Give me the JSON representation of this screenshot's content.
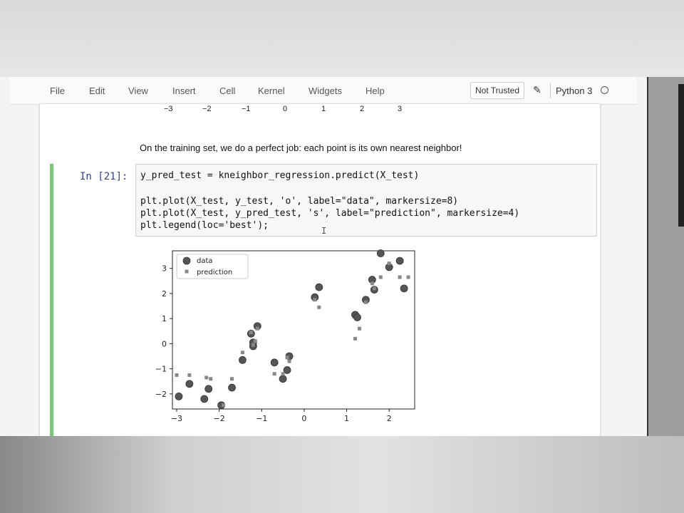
{
  "menu": {
    "items": [
      "File",
      "Edit",
      "View",
      "Insert",
      "Cell",
      "Kernel",
      "Widgets",
      "Help"
    ],
    "trust_label": "Not Trusted",
    "kernel_label": "Python 3",
    "pencil_icon": "pencil-icon",
    "kernel_status_icon": "kernel-idle-circle-icon"
  },
  "previous_output": {
    "tick_labels": [
      "−3",
      "−2",
      "−1",
      "0",
      "1",
      "2",
      "3"
    ]
  },
  "markdown_text": "On the training set, we do a perfect job: each point is its own nearest neighbor!",
  "cell": {
    "prompt": "In [21]:",
    "code_lines": [
      "y_pred_test = kneighbor_regression.predict(X_test)",
      "",
      "plt.plot(X_test, y_test, 'o', label=\"data\", markersize=8)",
      "plt.plot(X_test, y_pred_test, 's', label=\"prediction\", markersize=4)",
      "plt.legend(loc='best');"
    ],
    "cursor_glyph": "I"
  },
  "chart_data": {
    "type": "scatter",
    "xlim": [
      -3.1,
      2.6
    ],
    "ylim": [
      -2.6,
      3.7
    ],
    "xticks": [
      -3,
      -2,
      -1,
      0,
      1,
      2
    ],
    "xtick_labels": [
      "−3",
      "−2",
      "−1",
      "0",
      "1",
      "2"
    ],
    "yticks": [
      -2,
      -1,
      0,
      1,
      2,
      3
    ],
    "ytick_labels": [
      "−2",
      "−1",
      "0",
      "1",
      "2",
      "3"
    ],
    "legend": {
      "placement": "upper-left",
      "entries": [
        "data",
        "prediction"
      ]
    },
    "series": [
      {
        "name": "data",
        "marker": "circle",
        "color": "#555555",
        "points": [
          [
            -2.95,
            -2.1
          ],
          [
            -2.7,
            -1.6
          ],
          [
            -2.35,
            -2.2
          ],
          [
            -2.25,
            -1.8
          ],
          [
            -1.95,
            -2.45
          ],
          [
            -1.7,
            -1.75
          ],
          [
            -1.45,
            -0.65
          ],
          [
            -1.25,
            0.4
          ],
          [
            -1.2,
            -0.1
          ],
          [
            -1.2,
            0.05
          ],
          [
            -1.1,
            0.7
          ],
          [
            -0.7,
            -0.75
          ],
          [
            -0.5,
            -1.4
          ],
          [
            -0.4,
            -1.05
          ],
          [
            -0.35,
            -0.5
          ],
          [
            0.25,
            1.85
          ],
          [
            0.35,
            2.25
          ],
          [
            1.2,
            1.15
          ],
          [
            1.25,
            1.05
          ],
          [
            1.45,
            1.75
          ],
          [
            1.6,
            2.55
          ],
          [
            1.65,
            2.15
          ],
          [
            1.8,
            3.6
          ],
          [
            2.0,
            3.05
          ],
          [
            2.25,
            3.3
          ],
          [
            2.35,
            2.2
          ]
        ]
      },
      {
        "name": "prediction",
        "marker": "square",
        "color": "#888888",
        "points": [
          [
            -3.0,
            -1.25
          ],
          [
            -2.7,
            -1.25
          ],
          [
            -2.3,
            -1.35
          ],
          [
            -2.2,
            -1.4
          ],
          [
            -1.9,
            -2.45
          ],
          [
            -1.7,
            -1.4
          ],
          [
            -1.45,
            -0.35
          ],
          [
            -1.25,
            0.45
          ],
          [
            -1.2,
            -0.05
          ],
          [
            -1.15,
            0.1
          ],
          [
            -1.1,
            0.6
          ],
          [
            -0.7,
            -1.2
          ],
          [
            -0.5,
            -1.2
          ],
          [
            -0.4,
            -0.55
          ],
          [
            -0.35,
            -0.7
          ],
          [
            0.25,
            1.75
          ],
          [
            0.35,
            1.45
          ],
          [
            1.2,
            0.2
          ],
          [
            1.3,
            0.6
          ],
          [
            1.45,
            1.65
          ],
          [
            1.6,
            2.4
          ],
          [
            1.65,
            2.2
          ],
          [
            1.8,
            2.65
          ],
          [
            2.0,
            3.2
          ],
          [
            2.25,
            2.65
          ],
          [
            2.45,
            2.65
          ]
        ]
      }
    ]
  }
}
